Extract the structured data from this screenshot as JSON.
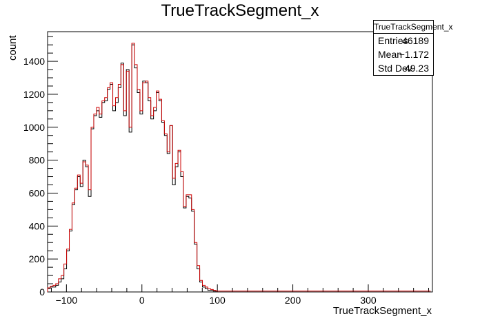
{
  "title": "TrueTrackSegment_x",
  "stats": {
    "name": "TrueTrackSegment_x",
    "rows": [
      {
        "label": "Entries",
        "value": "46189"
      },
      {
        "label": "Mean",
        "value": "−1.172"
      },
      {
        "label": "Std Dev",
        "value": "49.23"
      }
    ]
  },
  "chart_data": {
    "type": "bar",
    "title": "TrueTrackSegment_x",
    "xlabel": "TrueTrackSegment_x",
    "ylabel": "count",
    "xlim": [
      -125,
      385
    ],
    "ylim": [
      0,
      1580
    ],
    "x_ticks": [
      -100,
      0,
      100,
      200,
      300
    ],
    "x_tick_labels": [
      "−100",
      "0",
      "100",
      "200",
      "300"
    ],
    "y_ticks": [
      0,
      200,
      400,
      600,
      800,
      1000,
      1200,
      1400
    ],
    "y_tick_labels": [
      "0",
      "200",
      "400",
      "600",
      "800",
      "1000",
      "1200",
      "1400"
    ],
    "bin_width": 3.6,
    "bin_edges_start": -125,
    "series": [
      {
        "color": "#000000",
        "values": [
          20,
          30,
          30,
          40,
          60,
          80,
          140,
          250,
          370,
          530,
          620,
          700,
          640,
          800,
          760,
          580,
          990,
          1070,
          1100,
          1060,
          1150,
          1160,
          1230,
          1260,
          1100,
          1150,
          1240,
          1390,
          1070,
          1350,
          970,
          1500,
          1360,
          1210,
          1080,
          1280,
          1270,
          1160,
          1050,
          1100,
          1210,
          1160,
          1030,
          950,
          840,
          1010,
          650,
          760,
          850,
          700,
          510,
          580,
          570,
          490,
          290,
          140,
          60,
          30,
          20,
          10,
          10,
          5,
          0,
          0,
          0,
          0,
          0,
          0,
          0,
          0,
          0,
          0,
          0,
          0,
          0,
          0,
          0,
          0,
          0,
          0,
          0,
          0,
          0,
          0,
          0,
          0,
          0,
          0,
          0,
          0,
          0,
          0,
          0,
          0,
          0,
          0,
          0,
          0,
          0,
          0,
          0,
          0,
          0,
          0,
          0,
          0,
          0,
          0,
          0,
          0,
          0,
          0,
          0,
          0,
          0,
          0,
          0,
          0,
          0,
          0,
          0,
          0,
          0,
          0,
          0,
          0,
          0,
          0,
          0,
          0,
          0,
          0,
          0,
          0,
          0,
          0,
          0,
          0,
          0,
          0,
          0
        ]
      },
      {
        "color": "#cc0000",
        "values": [
          25,
          35,
          40,
          50,
          80,
          100,
          170,
          260,
          380,
          540,
          630,
          710,
          660,
          790,
          770,
          620,
          1000,
          1080,
          1120,
          1080,
          1160,
          1180,
          1240,
          1270,
          1130,
          1180,
          1260,
          1380,
          1100,
          1340,
          1000,
          1510,
          1380,
          1230,
          1100,
          1270,
          1280,
          1180,
          1070,
          1120,
          1220,
          1170,
          1040,
          960,
          850,
          1010,
          690,
          780,
          860,
          730,
          520,
          590,
          590,
          500,
          300,
          160,
          70,
          40,
          30,
          20,
          15,
          10,
          5,
          5,
          5,
          5,
          5,
          5,
          5,
          5,
          5,
          5,
          5,
          5,
          5,
          5,
          5,
          5,
          5,
          5,
          5,
          5,
          5,
          5,
          5,
          5,
          5,
          5,
          5,
          5,
          5,
          5,
          5,
          5,
          5,
          5,
          5,
          5,
          5,
          5,
          5,
          5,
          5,
          5,
          5,
          5,
          5,
          5,
          5,
          5,
          5,
          5,
          5,
          5,
          5,
          5,
          5,
          5,
          5,
          5,
          5,
          5,
          5,
          5,
          5,
          5,
          5,
          5,
          5,
          5,
          5,
          5,
          5,
          5,
          5,
          5,
          5,
          5,
          5,
          5,
          5
        ]
      }
    ],
    "grid": false
  }
}
